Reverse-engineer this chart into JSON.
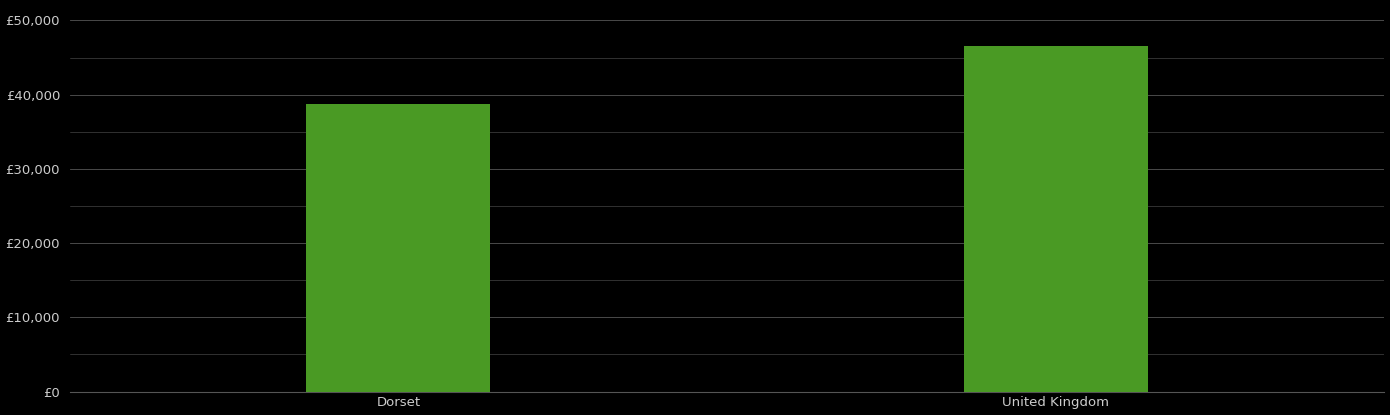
{
  "categories": [
    "Dorset",
    "United Kingdom"
  ],
  "values": [
    38700,
    46500
  ],
  "bar_color": "#4a9a24",
  "background_color": "#000000",
  "text_color": "#cccccc",
  "grid_color": "#555555",
  "ylim": [
    0,
    52000
  ],
  "yticks": [
    0,
    10000,
    20000,
    30000,
    40000,
    50000
  ],
  "bar_width": 0.28,
  "figsize": [
    13.9,
    4.15
  ],
  "dpi": 100,
  "tick_fontsize": 9.5,
  "label_fontsize": 9.5
}
